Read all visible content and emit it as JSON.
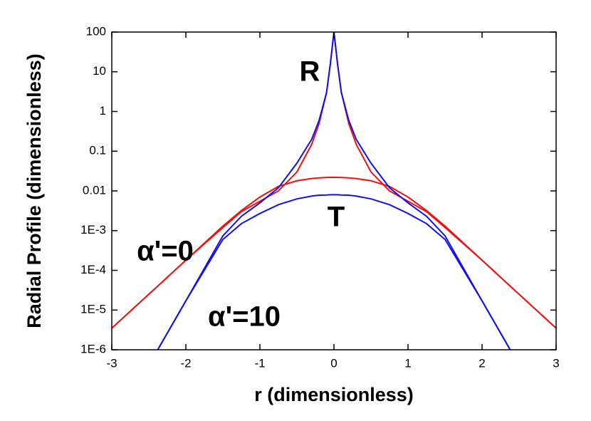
{
  "chart_data": {
    "type": "line",
    "xlabel": "r (dimensionless)",
    "ylabel": "Radial Profile (dimensionless)",
    "log_y": true,
    "xlim": [
      -3,
      3
    ],
    "xticks": [
      -3,
      -2,
      -1,
      0,
      1,
      2,
      3
    ],
    "ylim": [
      1e-06,
      100
    ],
    "yticks": [
      {
        "value": 1e-06,
        "label": "1E-6"
      },
      {
        "value": 1e-05,
        "label": "1E-5"
      },
      {
        "value": 0.0001,
        "label": "1E-4"
      },
      {
        "value": 0.001,
        "label": "1E-3"
      },
      0.01,
      0.1,
      1,
      10,
      100
    ],
    "annotations": [
      "R",
      "T",
      "α'=0",
      "α'=10"
    ],
    "x": [
      -3,
      -2.5,
      -2.38,
      -2,
      -1.5,
      -1.25,
      -1,
      -0.75,
      -0.5,
      -0.3,
      -0.2,
      -0.1,
      -0.05,
      0,
      0.05,
      0.1,
      0.2,
      0.3,
      0.5,
      0.75,
      1,
      1.25,
      1.5,
      2,
      2.38,
      2.5,
      3
    ],
    "series": [
      {
        "color": "#ee1111",
        "values": [
          3.5e-06,
          2.5e-05,
          4e-05,
          0.00018,
          0.0012,
          0.003,
          0.0055,
          0.01,
          0.03,
          0.15,
          0.5,
          3,
          15,
          100,
          15,
          3,
          0.5,
          0.15,
          0.03,
          0.01,
          0.0055,
          0.003,
          0.0012,
          0.00018,
          4e-05,
          2.5e-05,
          3.5e-06
        ]
      },
      {
        "color": "#ee1111",
        "values": [
          3.5e-06,
          2.5e-05,
          4e-05,
          0.00018,
          0.0013,
          0.0032,
          0.007,
          0.013,
          0.018,
          0.0205,
          0.0213,
          0.0218,
          0.0219,
          0.022,
          0.0219,
          0.0218,
          0.0213,
          0.0205,
          0.018,
          0.013,
          0.007,
          0.0032,
          0.0013,
          0.00018,
          4e-05,
          2.5e-05,
          3.5e-06
        ]
      },
      {
        "color": "#1111ee",
        "values": [
          null,
          null,
          1e-06,
          1.7e-05,
          0.00074,
          0.0023,
          0.005,
          0.012,
          0.05,
          0.2,
          0.6,
          3,
          15,
          100,
          15,
          3,
          0.6,
          0.2,
          0.05,
          0.012,
          0.005,
          0.0023,
          0.00074,
          1.7e-05,
          1e-06,
          null,
          null
        ]
      },
      {
        "color": "#1111ee",
        "values": [
          null,
          null,
          1e-06,
          1.7e-05,
          0.0006,
          0.0015,
          0.0027,
          0.0045,
          0.0063,
          0.0074,
          0.0078,
          0.0079,
          0.008,
          0.008,
          0.008,
          0.0079,
          0.0078,
          0.0074,
          0.0063,
          0.0045,
          0.0027,
          0.0015,
          0.0006,
          1.7e-05,
          1e-06,
          null,
          null
        ]
      }
    ]
  }
}
